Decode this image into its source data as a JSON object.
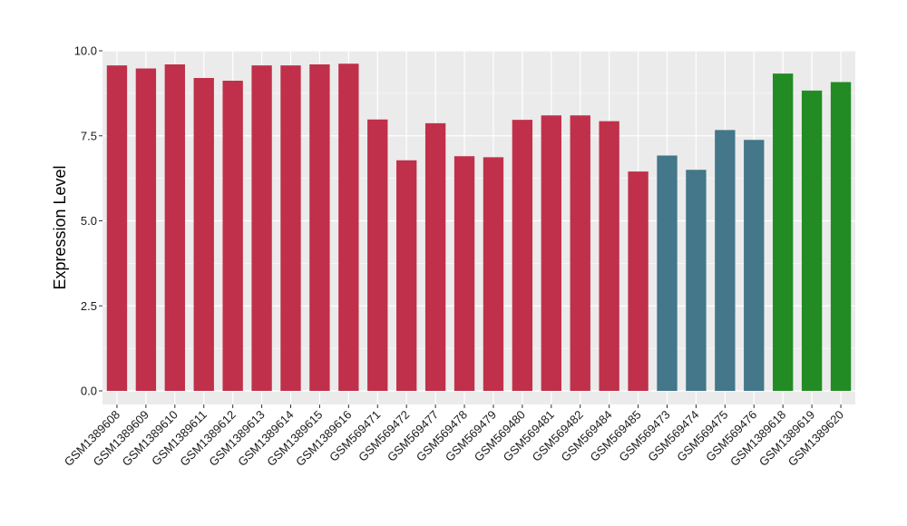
{
  "chart_data": {
    "type": "bar",
    "title": "",
    "xlabel": "",
    "ylabel": "Expression Level",
    "ylim": [
      -0.4,
      10.0
    ],
    "yticks": [
      0.0,
      2.5,
      5.0,
      7.5,
      10.0
    ],
    "ytick_labels": [
      "0.0",
      "2.5",
      "5.0",
      "7.5",
      "10.0"
    ],
    "grid": true,
    "legend": "none",
    "categories": [
      "GSM1389608",
      "GSM1389609",
      "GSM1389610",
      "GSM1389611",
      "GSM1389612",
      "GSM1389613",
      "GSM1389614",
      "GSM1389615",
      "GSM1389616",
      "GSM569471",
      "GSM569472",
      "GSM569477",
      "GSM569478",
      "GSM569479",
      "GSM569480",
      "GSM569481",
      "GSM569482",
      "GSM569484",
      "GSM569485",
      "GSM569473",
      "GSM569474",
      "GSM569475",
      "GSM569476",
      "GSM1389618",
      "GSM1389619",
      "GSM1389620"
    ],
    "values": [
      9.57,
      9.48,
      9.6,
      9.2,
      9.12,
      9.57,
      9.57,
      9.6,
      9.62,
      7.98,
      6.78,
      7.87,
      6.9,
      6.87,
      7.97,
      8.1,
      8.1,
      7.93,
      6.45,
      6.92,
      6.5,
      7.67,
      7.38,
      9.33,
      8.83,
      9.08
    ],
    "bar_colors": [
      "#c0304a",
      "#c0304a",
      "#c0304a",
      "#c0304a",
      "#c0304a",
      "#c0304a",
      "#c0304a",
      "#c0304a",
      "#c0304a",
      "#c0304a",
      "#c0304a",
      "#c0304a",
      "#c0304a",
      "#c0304a",
      "#c0304a",
      "#c0304a",
      "#c0304a",
      "#c0304a",
      "#c0304a",
      "#437789",
      "#437789",
      "#437789",
      "#437789",
      "#238b24",
      "#238b24",
      "#238b24"
    ],
    "panel_background": "#ebebeb",
    "grid_color": "#ffffff"
  }
}
